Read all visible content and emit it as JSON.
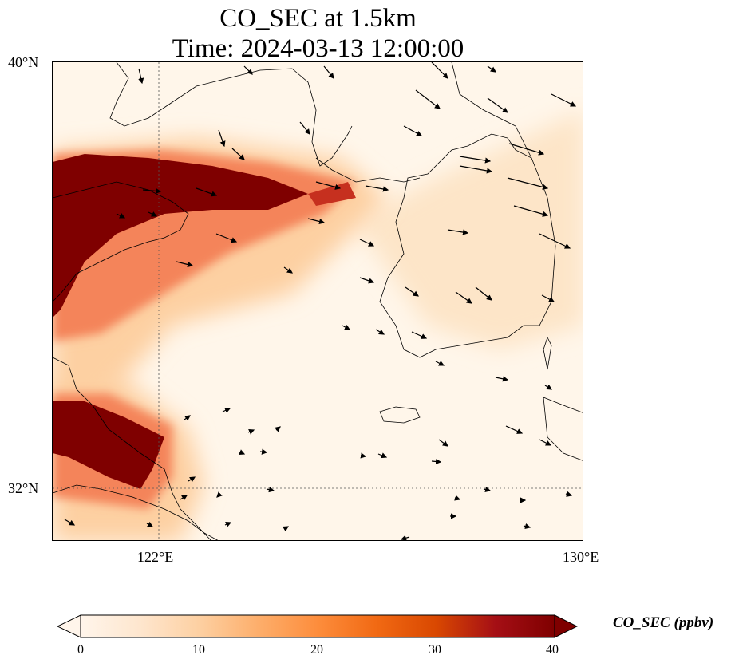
{
  "title": {
    "line1": "CO_SEC at 1.5km",
    "line2": "Time: 2024-03-13 12:00:00"
  },
  "axes": {
    "lat_ticks": [
      {
        "label": "40°N",
        "value": 40
      },
      {
        "label": "32°N",
        "value": 32
      }
    ],
    "lon_ticks": [
      {
        "label": "122°E",
        "value": 122
      },
      {
        "label": "130°E",
        "value": 130
      }
    ],
    "lon_range": [
      120,
      130
    ],
    "lat_range": [
      31,
      40
    ],
    "gridlines": "dotted at 122°E and 32°N"
  },
  "colorbar": {
    "label": "CO_SEC (ppbv)",
    "ticks": [
      "0",
      "10",
      "20",
      "30",
      "40"
    ],
    "min": 0,
    "max": 40,
    "extend": "both",
    "colormap": [
      "#fff5eb",
      "#fee6ce",
      "#fdd0a2",
      "#fdae6b",
      "#fd8d3c",
      "#f16913",
      "#d94801",
      "#a50f15",
      "#7f0000"
    ]
  },
  "chart_data": {
    "type": "heatmap",
    "variable": "CO_SEC",
    "units": "ppbv",
    "level": "1.5km",
    "time": "2024-03-13 12:00:00",
    "features": [
      {
        "region": "plume over Liaodong / Bohai (~120–124.5°E, 36.5–38.5°N)",
        "approx_max_ppbv": 40
      },
      {
        "region": "plume near Yangtze delta (~120–122°E, 31.8–33.5°N)",
        "approx_max_ppbv": 40
      },
      {
        "region": "elevated band over Korea & Yellow Sea",
        "approx_ppbv": 5
      }
    ],
    "wind_vectors": "predominantly westerly/north-westerly, stronger over northern Korea"
  }
}
